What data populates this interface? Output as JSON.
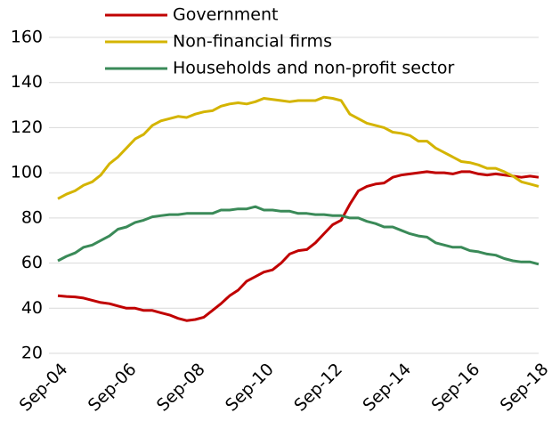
{
  "chart_data": {
    "type": "line",
    "categories": [
      "Sep-04",
      null,
      null,
      null,
      null,
      null,
      null,
      null,
      "Sep-06",
      null,
      null,
      null,
      null,
      null,
      null,
      null,
      "Sep-08",
      null,
      null,
      null,
      null,
      null,
      null,
      null,
      "Sep-10",
      null,
      null,
      null,
      null,
      null,
      null,
      null,
      "Sep-12",
      null,
      null,
      null,
      null,
      null,
      null,
      null,
      "Sep-14",
      null,
      null,
      null,
      null,
      null,
      null,
      null,
      "Sep-16",
      null,
      null,
      null,
      null,
      null,
      null,
      null,
      "Sep-18"
    ],
    "series": [
      {
        "name": "Government",
        "color": "#c00000",
        "values": [
          45.5,
          45.2,
          45,
          44.5,
          43.5,
          42.5,
          42,
          41,
          40,
          40,
          39,
          39,
          38,
          37,
          35.5,
          34.5,
          35,
          36,
          39,
          42,
          45.5,
          48,
          52,
          54,
          56,
          57,
          60,
          64,
          65.5,
          66,
          69,
          73,
          77,
          79,
          86,
          92,
          94,
          95,
          95.5,
          98,
          99,
          99.5,
          100,
          100.5,
          100,
          100,
          99.5,
          100.5,
          100.5,
          99.5,
          99,
          99.5,
          99,
          98.5,
          98,
          98.5,
          98
        ]
      },
      {
        "name": "Non-financial firms",
        "color": "#d4b400",
        "values": [
          88.5,
          90.5,
          92,
          94.5,
          96,
          99,
          104,
          107,
          111,
          115,
          117,
          121,
          123,
          124,
          125,
          124.5,
          126,
          127,
          127.5,
          129.5,
          130.5,
          131,
          130.5,
          131.5,
          133,
          132.5,
          132,
          131.5,
          132,
          132,
          132,
          133.5,
          133,
          132,
          126,
          124,
          122,
          121,
          120,
          118,
          117.5,
          116.5,
          114,
          114,
          111,
          109,
          107,
          105,
          104.5,
          103.5,
          102,
          102,
          100.5,
          98.5,
          96,
          95,
          94
        ]
      },
      {
        "name": "Households and non-profit sector",
        "color": "#3a8a58",
        "values": [
          61,
          63,
          64.5,
          67,
          68,
          70,
          72,
          75,
          76,
          78,
          79,
          80.5,
          81,
          81.5,
          81.5,
          82,
          82,
          82,
          82,
          83.5,
          83.5,
          84,
          84,
          85,
          83.5,
          83.5,
          83,
          83,
          82,
          82,
          81.5,
          81.5,
          81,
          81,
          80,
          80,
          78.5,
          77.5,
          76,
          76,
          74.5,
          73,
          72,
          71.5,
          69,
          68,
          67,
          67,
          65.5,
          65,
          64,
          63.5,
          62,
          61,
          60.5,
          60.5,
          59.5
        ]
      }
    ],
    "ylim": [
      20,
      160
    ],
    "yticks": [
      20,
      40,
      60,
      80,
      100,
      120,
      140,
      160
    ],
    "grid": true
  }
}
